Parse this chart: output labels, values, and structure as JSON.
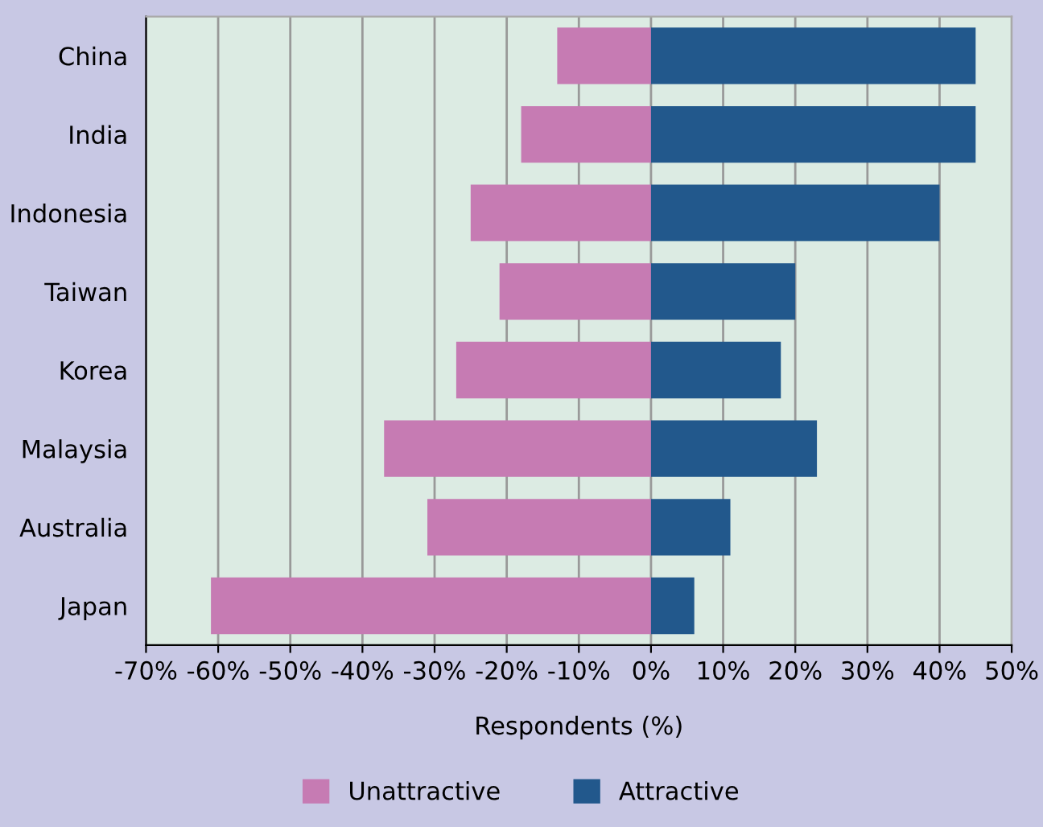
{
  "chart_data": {
    "type": "bar",
    "orientation": "horizontal",
    "stacked": true,
    "categories": [
      "China",
      "India",
      "Indonesia",
      "Taiwan",
      "Korea",
      "Malaysia",
      "Australia",
      "Japan"
    ],
    "series": [
      {
        "name": "Unattractive",
        "color": "#c67bb3",
        "values": [
          -13,
          -18,
          -25,
          -21,
          -27,
          -37,
          -31,
          -61
        ]
      },
      {
        "name": "Attractive",
        "color": "#22588c",
        "values": [
          45,
          45,
          40,
          20,
          18,
          23,
          11,
          6
        ]
      }
    ],
    "xlabel": "Respondents (%)",
    "xlim": [
      -70,
      50
    ],
    "xticks": [
      {
        "value": -70,
        "label": "-70%"
      },
      {
        "value": -60,
        "label": "-60%"
      },
      {
        "value": -50,
        "label": "-50%"
      },
      {
        "value": -40,
        "label": "-40%"
      },
      {
        "value": -30,
        "label": "-30%"
      },
      {
        "value": -20,
        "label": "-20%"
      },
      {
        "value": -10,
        "label": "-10%"
      },
      {
        "value": 0,
        "label": "0%"
      },
      {
        "value": 10,
        "label": "10%"
      },
      {
        "value": 20,
        "label": "20%"
      },
      {
        "value": 30,
        "label": "30%"
      },
      {
        "value": 40,
        "label": "40%"
      },
      {
        "value": 50,
        "label": "50%"
      }
    ],
    "grid": "x",
    "legend": "bottom"
  }
}
